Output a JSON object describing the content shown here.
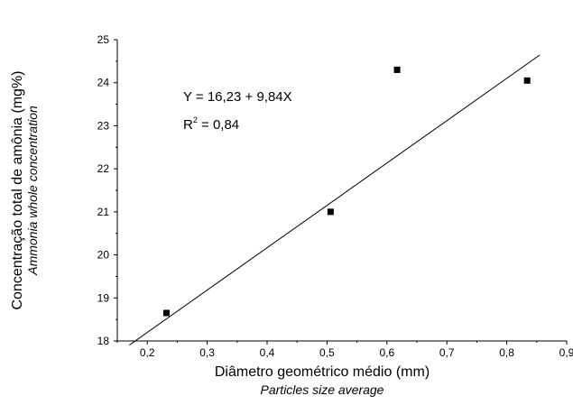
{
  "chart_data": {
    "type": "scatter",
    "xlabel": "Diâmetro geométrico médio (mm)",
    "xlabel_sub": "Particles size average",
    "ylabel": "Concentração total de amônia (mg%)",
    "ylabel_sub": "Ammonia whole concentration",
    "xlim": [
      0.15,
      0.9
    ],
    "ylim": [
      18,
      25
    ],
    "x_ticks": [
      0.2,
      0.3,
      0.4,
      0.5,
      0.6,
      0.7,
      0.8,
      0.9
    ],
    "x_tick_labels": [
      "0,2",
      "0,3",
      "0,4",
      "0,5",
      "0,6",
      "0,7",
      "0,8",
      "0,9"
    ],
    "y_ticks": [
      18,
      19,
      20,
      21,
      22,
      23,
      24,
      25
    ],
    "y_tick_labels": [
      "18",
      "19",
      "20",
      "21",
      "22",
      "23",
      "24",
      "25"
    ],
    "grid": false,
    "series": [
      {
        "marker": "square",
        "color": "#000000",
        "x": [
          0.232,
          0.506,
          0.617,
          0.834
        ],
        "y": [
          18.65,
          21.0,
          24.3,
          24.05
        ]
      }
    ],
    "regression": {
      "intercept": 16.23,
      "slope": 9.84,
      "x_range": [
        0.17,
        0.855
      ],
      "color": "#000000"
    },
    "annotation": {
      "equation": "Y = 16,23 + 9,84X",
      "r2_prefix": "R",
      "r2_sup": "2",
      "r2_value": " = 0,84"
    }
  }
}
